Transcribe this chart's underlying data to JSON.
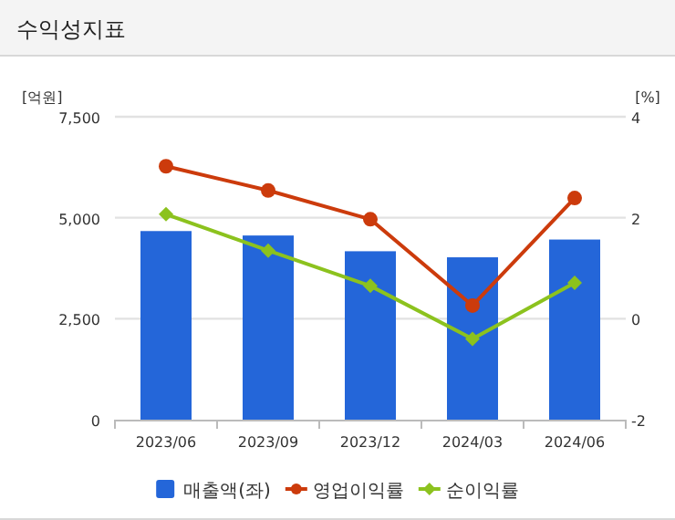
{
  "chart_data": {
    "type": "bar",
    "title": "수익성지표",
    "ylabel": "[억원]",
    "y2label": "[%]",
    "categories": [
      "2023/06",
      "2023/09",
      "2023/12",
      "2024/03",
      "2024/06"
    ],
    "series": [
      {
        "name": "매출액(좌)",
        "color": "#2466d9",
        "values": [
          4670,
          4560,
          4170,
          4020,
          4460
        ]
      },
      {
        "name": "영업이익률",
        "type": "line",
        "axis": "y2",
        "color": "#cc3b0c",
        "marker": "circle",
        "values": [
          3.02,
          2.54,
          1.97,
          0.26,
          2.39
        ]
      },
      {
        "name": "순이익률",
        "type": "line",
        "axis": "y2",
        "color": "#8cc21e",
        "marker": "diamond",
        "values": [
          2.07,
          1.35,
          0.65,
          -0.4,
          0.71
        ]
      }
    ],
    "ylim": [
      0,
      7500
    ],
    "yticks": [
      0,
      {
        "value": 2500,
        "label": "2,500"
      },
      {
        "value": 5000,
        "label": "5,000"
      },
      {
        "value": 7500,
        "label": "7,500"
      }
    ],
    "y2lim": [
      -2,
      4
    ],
    "y2ticks": [
      -2,
      0,
      2,
      4
    ],
    "grid": "y",
    "legend": "bottom"
  }
}
